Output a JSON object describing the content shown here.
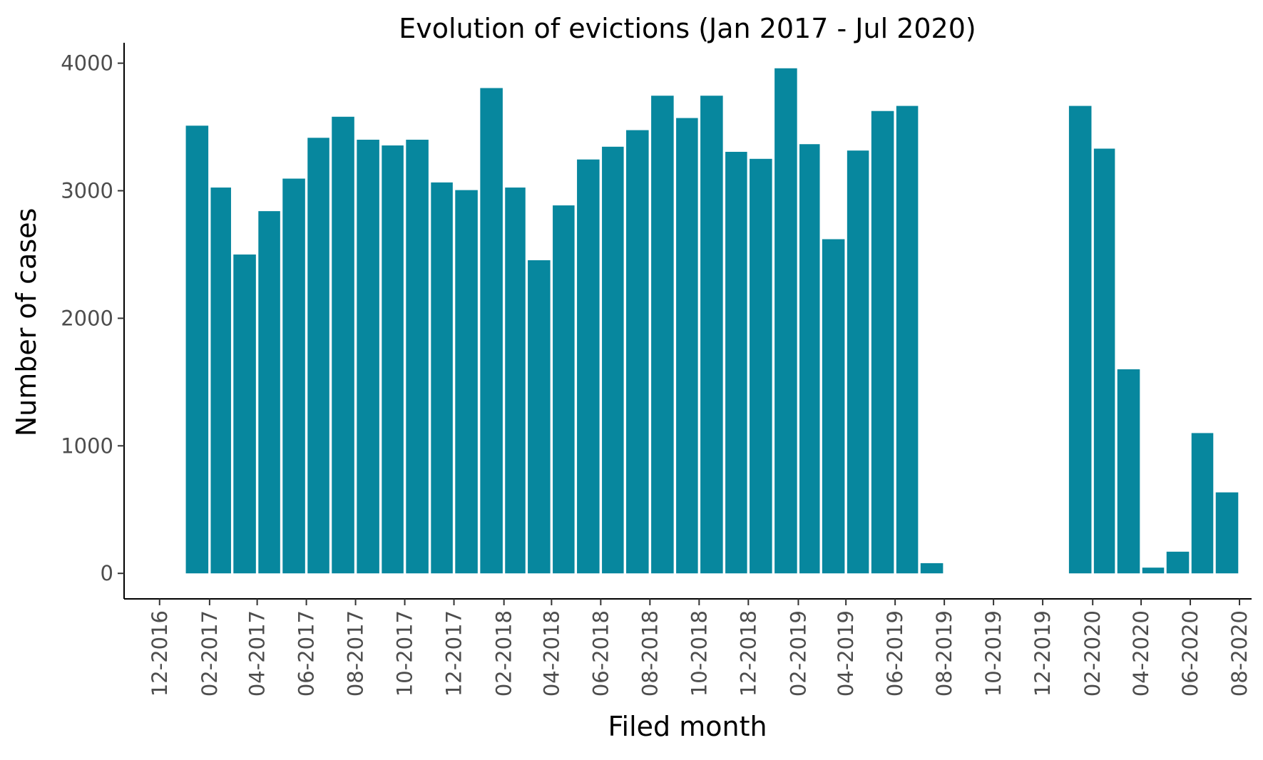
{
  "chart_data": {
    "type": "bar",
    "title": "Evolution of evictions (Jan 2017 - Jul 2020)",
    "xlabel": "Filed month",
    "ylabel": "Number of cases",
    "bar_color": "#07879E",
    "ylim": [
      -200,
      4160
    ],
    "yticks": [
      0,
      1000,
      2000,
      3000,
      4000
    ],
    "xlim": [
      "2016-10-18",
      "2020-08-16"
    ],
    "xticks": [
      "2016-12-01",
      "2017-02-01",
      "2017-04-01",
      "2017-06-01",
      "2017-08-01",
      "2017-10-01",
      "2017-12-01",
      "2018-02-01",
      "2018-04-01",
      "2018-06-01",
      "2018-08-01",
      "2018-10-01",
      "2018-12-01",
      "2019-02-01",
      "2019-04-01",
      "2019-06-01",
      "2019-08-01",
      "2019-10-01",
      "2019-12-01",
      "2020-02-01",
      "2020-04-01",
      "2020-06-01",
      "2020-08-01"
    ],
    "xtick_labels": [
      "12-2016",
      "02-2017",
      "04-2017",
      "06-2017",
      "08-2017",
      "10-2017",
      "12-2017",
      "02-2018",
      "04-2018",
      "06-2018",
      "08-2018",
      "10-2018",
      "12-2018",
      "02-2019",
      "04-2019",
      "06-2019",
      "08-2019",
      "10-2019",
      "12-2019",
      "02-2020",
      "04-2020",
      "06-2020",
      "08-2020"
    ],
    "grid": false,
    "legend": "none",
    "categories": [
      "2017-01",
      "2017-02",
      "2017-03",
      "2017-04",
      "2017-05",
      "2017-06",
      "2017-07",
      "2017-08",
      "2017-09",
      "2017-10",
      "2017-11",
      "2017-12",
      "2018-01",
      "2018-02",
      "2018-03",
      "2018-04",
      "2018-05",
      "2018-06",
      "2018-07",
      "2018-08",
      "2018-09",
      "2018-10",
      "2018-11",
      "2018-12",
      "2019-01",
      "2019-02",
      "2019-03",
      "2019-04",
      "2019-05",
      "2019-06",
      "2019-07",
      "2020-01",
      "2020-02",
      "2020-03",
      "2020-04",
      "2020-05",
      "2020-06",
      "2020-07"
    ],
    "values": [
      3510,
      3025,
      2500,
      2840,
      3095,
      3415,
      3580,
      3400,
      3355,
      3400,
      3065,
      3005,
      3805,
      3025,
      2455,
      2885,
      3245,
      3345,
      3475,
      3745,
      3570,
      3745,
      3305,
      3250,
      3960,
      3365,
      2620,
      3315,
      3625,
      3665,
      80,
      3665,
      3330,
      1600,
      45,
      170,
      1100,
      635
    ]
  }
}
